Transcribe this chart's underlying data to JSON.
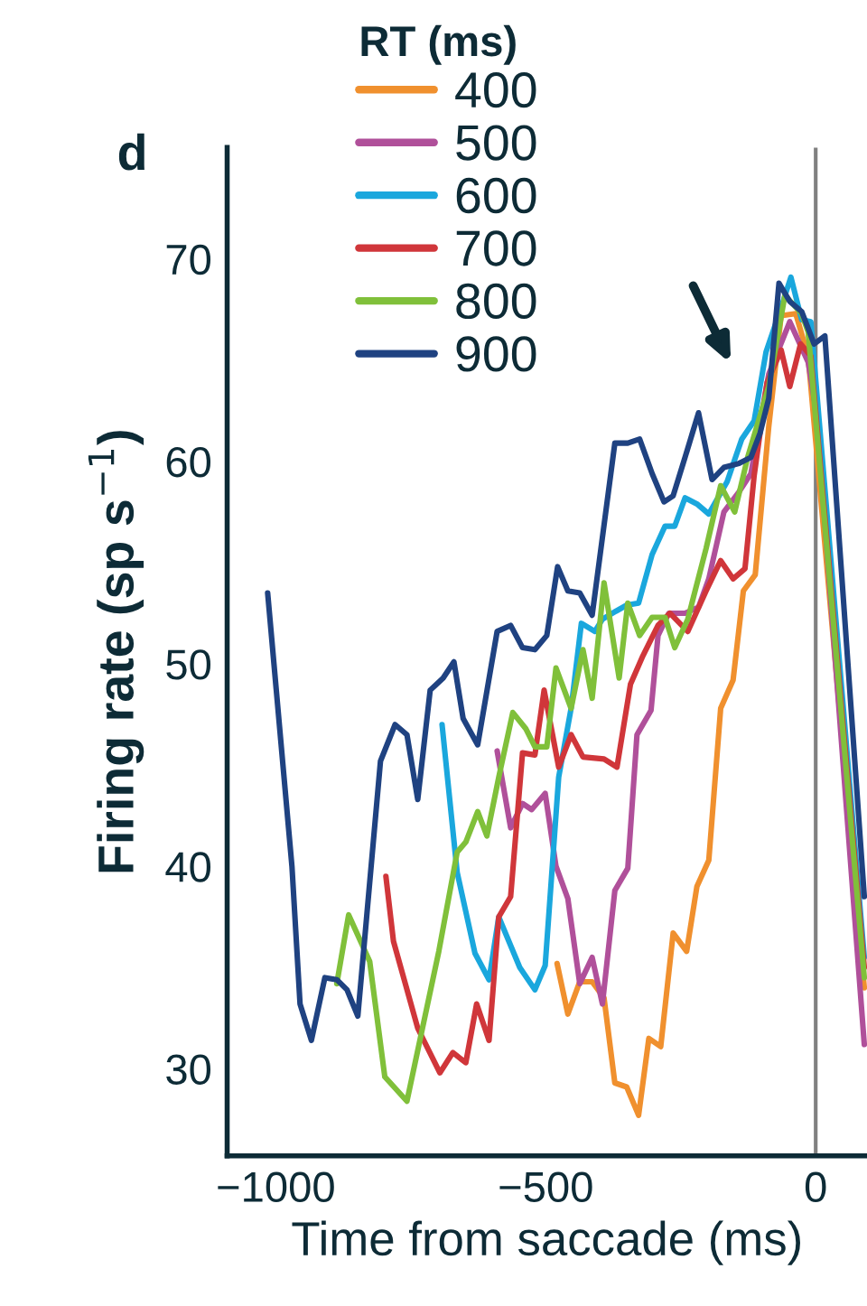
{
  "chart_data": {
    "type": "line",
    "title": "d",
    "xlabel": "Time from saccade (ms)",
    "ylabel": "Firing rate (sp s$^{−1}$)",
    "legend_title": "RT (ms)",
    "legend": "top",
    "xlim": [
      -1090,
      95
    ],
    "ylim": [
      25.7,
      75.5
    ],
    "xticks": [
      {
        "value": -1000,
        "label": "−1000"
      },
      {
        "value": -500,
        "label": "−500"
      },
      0
    ],
    "yticks": [
      30,
      40,
      50,
      60,
      70
    ],
    "grid": false,
    "ref_lines": [
      {
        "axis": "x",
        "value": 0,
        "label": null,
        "color": "#808080"
      }
    ],
    "series": [
      {
        "name": "400",
        "color": "#f0902e",
        "x": [
          -479,
          -459,
          -437,
          -414,
          -392,
          -372,
          -350,
          -328,
          -309,
          -287,
          -264,
          -239,
          -220,
          -198,
          -176,
          -153,
          -134,
          -112,
          -87,
          -64,
          -37,
          -14,
          90
        ],
        "values": [
          35.2,
          32.7,
          34.3,
          34.3,
          33.5,
          29.3,
          29.1,
          27.7,
          31.5,
          31.1,
          36.7,
          35.8,
          39.0,
          40.3,
          47.8,
          49.2,
          53.6,
          54.4,
          61.7,
          67.2,
          67.3,
          65.2,
          34.0
        ]
      },
      {
        "name": "500",
        "color": "#b0509a",
        "x": [
          -590,
          -565,
          -543,
          -526,
          -501,
          -481,
          -459,
          -437,
          -414,
          -395,
          -372,
          -348,
          -331,
          -305,
          -292,
          -272,
          -242,
          -217,
          -198,
          -170,
          -142,
          -120,
          -87,
          -48,
          -14,
          2,
          90
        ],
        "values": [
          45.7,
          41.9,
          43.1,
          42.8,
          43.6,
          40.0,
          38.4,
          34.2,
          35.5,
          33.2,
          38.8,
          39.9,
          46.5,
          47.7,
          51.4,
          52.5,
          52.5,
          52.8,
          54.2,
          57.5,
          58.5,
          59.4,
          64.3,
          66.9,
          64.9,
          62.3,
          31.2
        ]
      },
      {
        "name": "600",
        "color": "#1aa7dd",
        "x": [
          -692,
          -664,
          -631,
          -605,
          -587,
          -548,
          -520,
          -501,
          -476,
          -453,
          -434,
          -409,
          -395,
          -370,
          -350,
          -328,
          -303,
          -279,
          -261,
          -242,
          -220,
          -198,
          -164,
          -137,
          -114,
          -92,
          -64,
          -46,
          -26,
          -9,
          90
        ],
        "values": [
          47.0,
          39.7,
          35.7,
          34.4,
          37.5,
          35.0,
          33.9,
          35.1,
          44.4,
          47.8,
          52.0,
          51.6,
          52.2,
          52.6,
          52.9,
          53.0,
          55.4,
          56.8,
          56.8,
          58.2,
          57.9,
          57.4,
          59.0,
          61.1,
          62.0,
          65.4,
          67.6,
          69.1,
          67.0,
          66.9,
          35.5
        ]
      },
      {
        "name": "700",
        "color": "#d0363a",
        "x": [
          -796,
          -782,
          -737,
          -696,
          -672,
          -648,
          -628,
          -605,
          -587,
          -565,
          -543,
          -520,
          -503,
          -476,
          -453,
          -431,
          -392,
          -368,
          -343,
          -320,
          -292,
          -270,
          -237,
          -203,
          -176,
          -153,
          -131,
          -114,
          -90,
          -64,
          -48,
          -28,
          -9,
          90
        ],
        "values": [
          39.5,
          36.3,
          32.0,
          29.8,
          30.8,
          30.3,
          33.2,
          31.4,
          37.5,
          38.5,
          45.6,
          45.5,
          48.7,
          44.9,
          46.5,
          45.4,
          45.3,
          44.9,
          49.0,
          50.4,
          51.9,
          52.5,
          51.6,
          53.6,
          55.1,
          54.2,
          54.7,
          59.3,
          63.9,
          65.5,
          63.7,
          65.8,
          65.2,
          35.0
        ]
      },
      {
        "name": "800",
        "color": "#80c03a",
        "x": [
          -887,
          -865,
          -826,
          -798,
          -757,
          -698,
          -664,
          -648,
          -626,
          -609,
          -587,
          -561,
          -537,
          -520,
          -498,
          -481,
          -453,
          -431,
          -414,
          -392,
          -364,
          -348,
          -326,
          -303,
          -279,
          -261,
          -237,
          -203,
          -176,
          -150,
          -126,
          -87,
          -57,
          -26,
          -14,
          90
        ],
        "values": [
          34.2,
          37.6,
          35.3,
          29.6,
          28.4,
          35.8,
          40.7,
          41.2,
          42.7,
          41.5,
          44.4,
          47.6,
          46.8,
          45.9,
          45.9,
          49.8,
          47.8,
          50.7,
          48.3,
          54.0,
          49.3,
          53.0,
          51.4,
          52.3,
          52.3,
          50.8,
          52.2,
          55.7,
          58.8,
          57.5,
          60.2,
          63.7,
          68.2,
          67.3,
          66.4,
          34.5
        ]
      },
      {
        "name": "900",
        "color": "#1f4281",
        "x": [
          -1015,
          -970,
          -955,
          -934,
          -909,
          -887,
          -868,
          -848,
          -806,
          -779,
          -757,
          -737,
          -714,
          -690,
          -670,
          -653,
          -626,
          -590,
          -565,
          -543,
          -520,
          -498,
          -478,
          -459,
          -437,
          -414,
          -372,
          -348,
          -326,
          -303,
          -281,
          -264,
          -242,
          -217,
          -192,
          -170,
          -142,
          -120,
          -103,
          -87,
          -68,
          -48,
          -26,
          -3,
          17,
          90
        ],
        "values": [
          53.5,
          40.0,
          33.2,
          31.4,
          34.5,
          34.4,
          33.9,
          32.6,
          45.2,
          47.0,
          46.5,
          43.3,
          48.7,
          49.3,
          50.1,
          47.3,
          46.0,
          51.6,
          51.9,
          50.8,
          50.7,
          51.4,
          54.8,
          53.6,
          53.5,
          52.4,
          60.9,
          60.9,
          61.1,
          59.4,
          58.0,
          58.3,
          60.2,
          62.4,
          59.1,
          59.7,
          59.9,
          60.2,
          61.4,
          63.1,
          68.8,
          67.9,
          67.4,
          65.8,
          66.2,
          38.5
        ]
      }
    ]
  }
}
